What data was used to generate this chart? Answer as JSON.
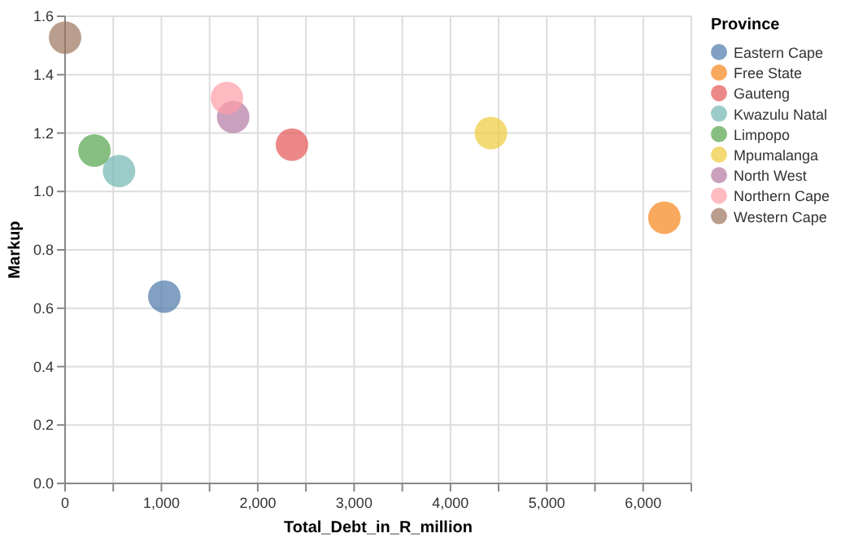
{
  "chart_data": {
    "type": "scatter",
    "xlabel": "Total_Debt_in_R_million",
    "ylabel": "Markup",
    "legend_title": "Province",
    "legend": "right",
    "grid": true,
    "marker": "circle",
    "xlim": [
      0,
      6500
    ],
    "xticks": [
      0,
      {
        "value": 500,
        "label": null
      },
      {
        "value": 1000,
        "label": "1,000"
      },
      {
        "value": 1500,
        "label": null
      },
      {
        "value": 2000,
        "label": "2,000"
      },
      {
        "value": 2500,
        "label": null
      },
      {
        "value": 3000,
        "label": "3,000"
      },
      {
        "value": 3500,
        "label": null
      },
      {
        "value": 4000,
        "label": "4,000"
      },
      {
        "value": 4500,
        "label": null
      },
      {
        "value": 5000,
        "label": "5,000"
      },
      {
        "value": 5500,
        "label": null
      },
      {
        "value": 6000,
        "label": "6,000"
      },
      {
        "value": 6500,
        "label": null
      }
    ],
    "ylim": [
      0,
      1.6
    ],
    "yticks": [
      {
        "value": 0,
        "label": "0.0"
      },
      0.2,
      0.4,
      0.6,
      0.8,
      {
        "value": 1,
        "label": "1.0"
      },
      1.2,
      1.4,
      1.6
    ],
    "series": [
      {
        "name": "Eastern Cape",
        "color": "#4c78a8",
        "x": [
          1030
        ],
        "values": [
          0.64
        ]
      },
      {
        "name": "Free State",
        "color": "#f58518",
        "x": [
          6220
        ],
        "values": [
          0.91
        ]
      },
      {
        "name": "Gauteng",
        "color": "#e45756",
        "x": [
          2355
        ],
        "values": [
          1.16
        ]
      },
      {
        "name": "Kwazulu Natal",
        "color": "#72b7b2",
        "x": [
          560
        ],
        "values": [
          1.07
        ]
      },
      {
        "name": "Limpopo",
        "color": "#54a24b",
        "x": [
          305
        ],
        "values": [
          1.14
        ]
      },
      {
        "name": "Mpumalanga",
        "color": "#eeca3b",
        "x": [
          4420
        ],
        "values": [
          1.2
        ]
      },
      {
        "name": "North West",
        "color": "#b279a2",
        "x": [
          1745
        ],
        "values": [
          1.255
        ]
      },
      {
        "name": "Northern Cape",
        "color": "#ff9da6",
        "x": [
          1680
        ],
        "values": [
          1.32
        ]
      },
      {
        "name": "Western Cape",
        "color": "#9d755d",
        "x": [
          0
        ],
        "values": [
          1.527
        ]
      }
    ]
  }
}
